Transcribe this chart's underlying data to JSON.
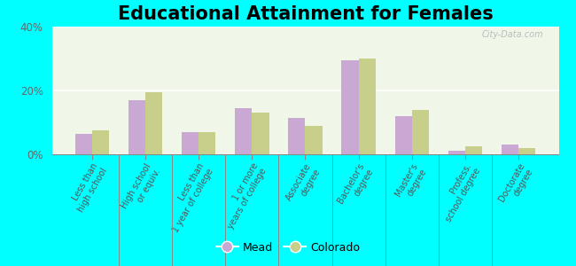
{
  "title": "Educational Attainment for Females",
  "categories": [
    "Less than\nhigh school",
    "High school\nor equiv.",
    "Less than\n1 year of college",
    "1 or more\nyears of college",
    "Associate\ndegree",
    "Bachelor's\ndegree",
    "Master's\ndegree",
    "Profess.\nschool degree",
    "Doctorate\ndegree"
  ],
  "mead_values": [
    6.5,
    17.0,
    7.0,
    14.5,
    11.5,
    29.5,
    12.0,
    1.0,
    3.0
  ],
  "colorado_values": [
    7.5,
    19.5,
    7.0,
    13.0,
    9.0,
    30.0,
    14.0,
    2.5,
    2.0
  ],
  "mead_color": "#c9a8d4",
  "colorado_color": "#c8cf8a",
  "outer_background": "#00ffff",
  "ylim": [
    0,
    40
  ],
  "yticks": [
    0,
    20,
    40
  ],
  "ytick_labels": [
    "0%",
    "20%",
    "40%"
  ],
  "title_fontsize": 15,
  "legend_labels": [
    "Mead",
    "Colorado"
  ],
  "bar_width": 0.32
}
